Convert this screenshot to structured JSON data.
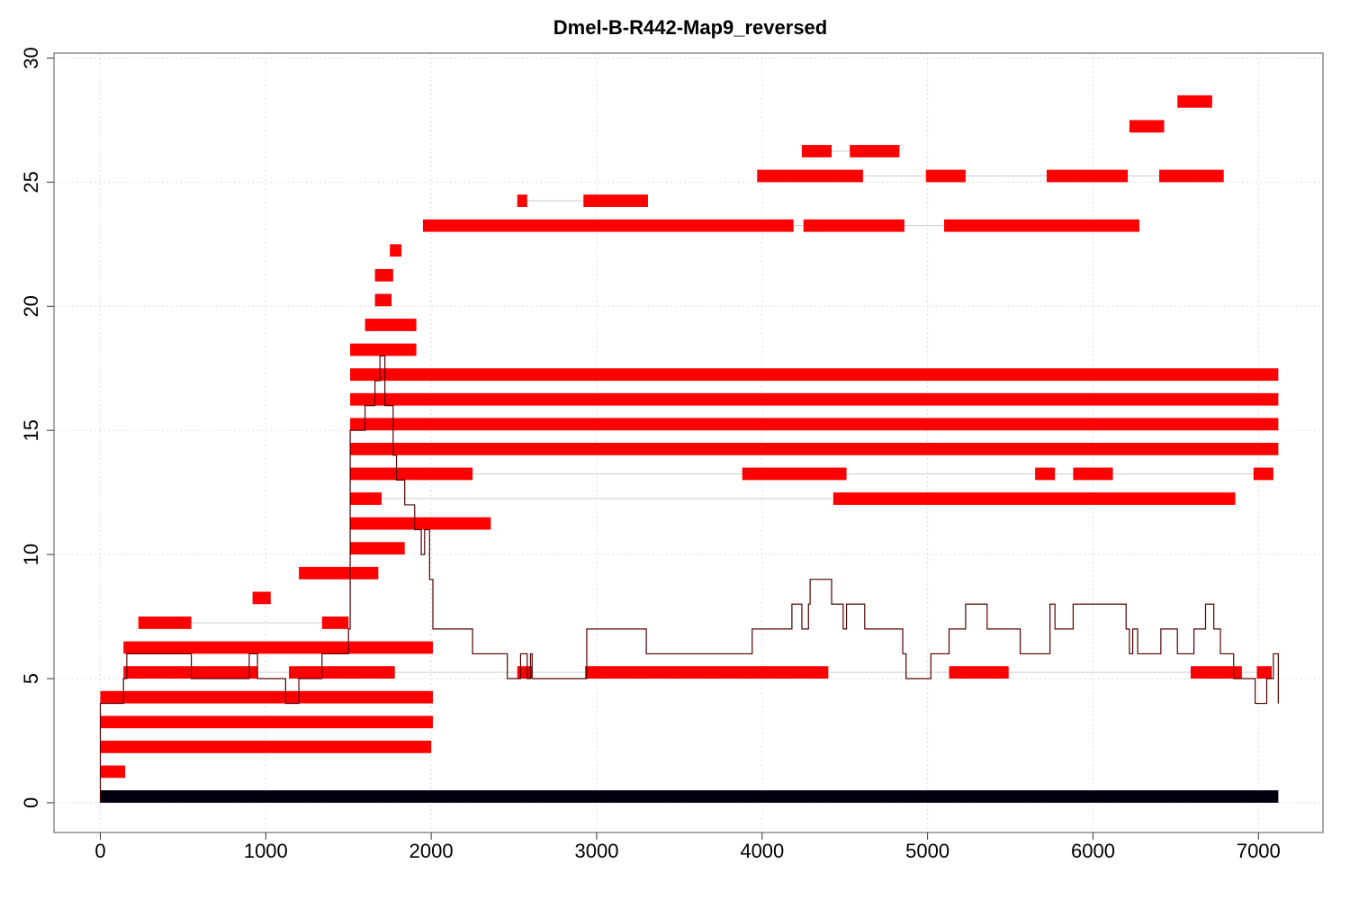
{
  "chart_data": {
    "type": "segment-map",
    "title": "Dmel-B-R442-Map9_reversed",
    "xlabel": "",
    "ylabel": "",
    "xlim": [
      -280,
      7390
    ],
    "ylim": [
      -1.2,
      30.2
    ],
    "x_ticks": [
      0,
      1000,
      2000,
      3000,
      4000,
      5000,
      6000,
      7000
    ],
    "y_ticks": [
      0,
      5,
      10,
      15,
      20,
      25,
      30
    ],
    "grid": true,
    "colors": {
      "segment": "#ff0000",
      "reference": "#000010",
      "connector": "#cccccc",
      "coverage": "#550000",
      "grid": "#dddddd"
    },
    "reference_bar": {
      "y": 0.25,
      "x0": 0,
      "x1": 7120
    },
    "tracks": [
      {
        "y": 1.25,
        "segments": [
          [
            0,
            150
          ]
        ]
      },
      {
        "y": 2.25,
        "segments": [
          [
            0,
            2000
          ]
        ]
      },
      {
        "y": 3.25,
        "segments": [
          [
            0,
            2010
          ]
        ]
      },
      {
        "y": 4.25,
        "segments": [
          [
            0,
            2010
          ]
        ]
      },
      {
        "y": 5.25,
        "segments": [
          [
            140,
            950
          ],
          [
            1140,
            1780
          ],
          [
            2520,
            2610
          ],
          [
            2930,
            4400
          ],
          [
            5130,
            5490
          ],
          [
            6590,
            6900
          ],
          [
            6990,
            7080
          ]
        ]
      },
      {
        "y": 6.25,
        "segments": [
          [
            140,
            2010
          ]
        ]
      },
      {
        "y": 7.25,
        "segments": [
          [
            230,
            550
          ],
          [
            1340,
            1500
          ]
        ]
      },
      {
        "y": 8.25,
        "segments": [
          [
            920,
            1030
          ]
        ]
      },
      {
        "y": 9.25,
        "segments": [
          [
            1200,
            1680
          ]
        ]
      },
      {
        "y": 10.25,
        "segments": [
          [
            1510,
            1840
          ]
        ]
      },
      {
        "y": 11.25,
        "segments": [
          [
            1510,
            2360
          ]
        ]
      },
      {
        "y": 12.25,
        "segments": [
          [
            1510,
            1700
          ],
          [
            4430,
            6860
          ]
        ]
      },
      {
        "y": 13.25,
        "segments": [
          [
            1510,
            2250
          ],
          [
            3880,
            4510
          ],
          [
            5650,
            5770
          ],
          [
            5880,
            6120
          ],
          [
            6970,
            7090
          ]
        ]
      },
      {
        "y": 14.25,
        "segments": [
          [
            1510,
            7120
          ]
        ]
      },
      {
        "y": 15.25,
        "segments": [
          [
            1510,
            7120
          ]
        ]
      },
      {
        "y": 16.25,
        "segments": [
          [
            1510,
            7120
          ]
        ]
      },
      {
        "y": 17.25,
        "segments": [
          [
            1510,
            7120
          ]
        ]
      },
      {
        "y": 18.25,
        "segments": [
          [
            1510,
            1910
          ]
        ]
      },
      {
        "y": 19.25,
        "segments": [
          [
            1600,
            1910
          ]
        ]
      },
      {
        "y": 20.25,
        "segments": [
          [
            1660,
            1760
          ]
        ]
      },
      {
        "y": 21.25,
        "segments": [
          [
            1660,
            1770
          ]
        ]
      },
      {
        "y": 22.25,
        "segments": [
          [
            1750,
            1820
          ]
        ]
      },
      {
        "y": 23.25,
        "segments": [
          [
            1950,
            4190
          ],
          [
            4250,
            4860
          ],
          [
            5100,
            6280
          ]
        ]
      },
      {
        "y": 24.25,
        "segments": [
          [
            2520,
            2580
          ],
          [
            2920,
            3310
          ]
        ]
      },
      {
        "y": 25.25,
        "segments": [
          [
            3970,
            4610
          ],
          [
            4990,
            5230
          ],
          [
            5720,
            6210
          ],
          [
            6400,
            6790
          ]
        ]
      },
      {
        "y": 26.25,
        "segments": [
          [
            4240,
            4420
          ],
          [
            4530,
            4830
          ]
        ]
      },
      {
        "y": 27.25,
        "segments": [
          [
            6220,
            6430
          ]
        ]
      },
      {
        "y": 28.25,
        "segments": [
          [
            6510,
            6720
          ]
        ]
      }
    ],
    "coverage_line": {
      "x": [
        0,
        140,
        160,
        230,
        550,
        900,
        950,
        1000,
        1120,
        1200,
        1340,
        1500,
        1510,
        1600,
        1660,
        1690,
        1720,
        1770,
        1790,
        1840,
        1900,
        1940,
        1960,
        1990,
        2010,
        2230,
        2250,
        2310,
        2460,
        2520,
        2540,
        2580,
        2600,
        2610,
        2640,
        2930,
        2940,
        3300,
        3870,
        3940,
        3950,
        4180,
        4240,
        4280,
        4290,
        4420,
        4430,
        4490,
        4510,
        4550,
        4620,
        4850,
        4870,
        5020,
        5100,
        5130,
        5230,
        5360,
        5560,
        5700,
        5740,
        5770,
        5820,
        5880,
        6200,
        6220,
        6240,
        6270,
        6330,
        6410,
        6450,
        6510,
        6610,
        6680,
        6730,
        6770,
        6780,
        6850,
        6900,
        6980,
        7050,
        7090,
        7120
      ],
      "y": [
        4,
        5,
        6,
        6,
        5,
        6,
        5,
        5,
        4,
        5,
        6,
        7,
        15,
        16,
        17,
        18,
        16,
        14,
        13,
        12,
        11,
        10,
        11,
        9,
        7,
        7,
        6,
        6,
        5,
        5,
        6,
        5,
        6,
        5,
        5,
        5,
        7,
        6,
        6,
        7,
        7,
        8,
        7,
        8,
        9,
        8,
        8,
        7,
        8,
        8,
        7,
        6,
        5,
        6,
        6,
        7,
        8,
        7,
        6,
        6,
        8,
        7,
        7,
        8,
        7,
        6,
        7,
        6,
        6,
        7,
        7,
        6,
        7,
        8,
        7,
        6,
        6,
        5,
        5,
        4,
        5,
        6,
        4
      ]
    }
  }
}
